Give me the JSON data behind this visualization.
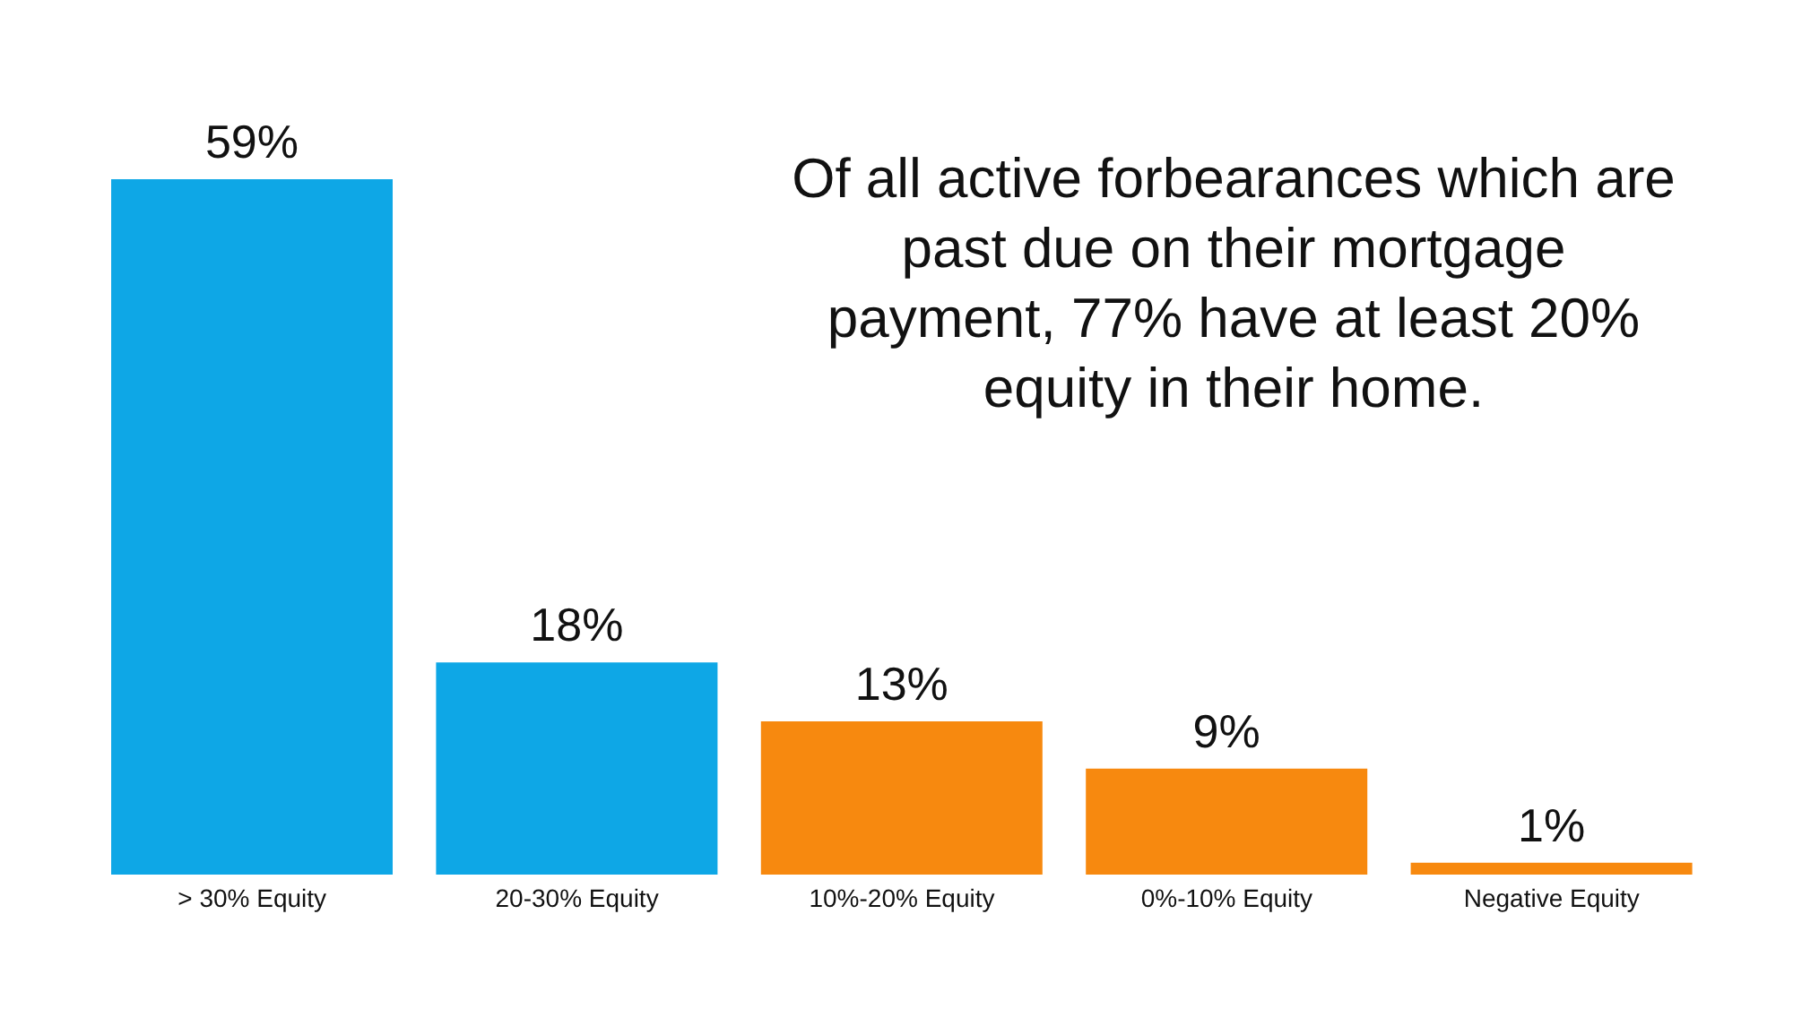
{
  "chart_data": {
    "type": "bar",
    "annotations": [
      "Of all active forbearances which are past due on their mortgage payment, 77% have at least 20% equity in their home."
    ],
    "categories": [
      "> 30% Equity",
      "20-30% Equity",
      "10%-20% Equity",
      "0%-10% Equity",
      "Negative Equity"
    ],
    "values": [
      59,
      18,
      13,
      9,
      1
    ],
    "colors": [
      "#0ea7e6",
      "#0ea7e6",
      "#f7890f",
      "#f7890f",
      "#f7890f"
    ],
    "value_labels": [
      "59%",
      "18%",
      "13%",
      "9%",
      "1%"
    ]
  }
}
